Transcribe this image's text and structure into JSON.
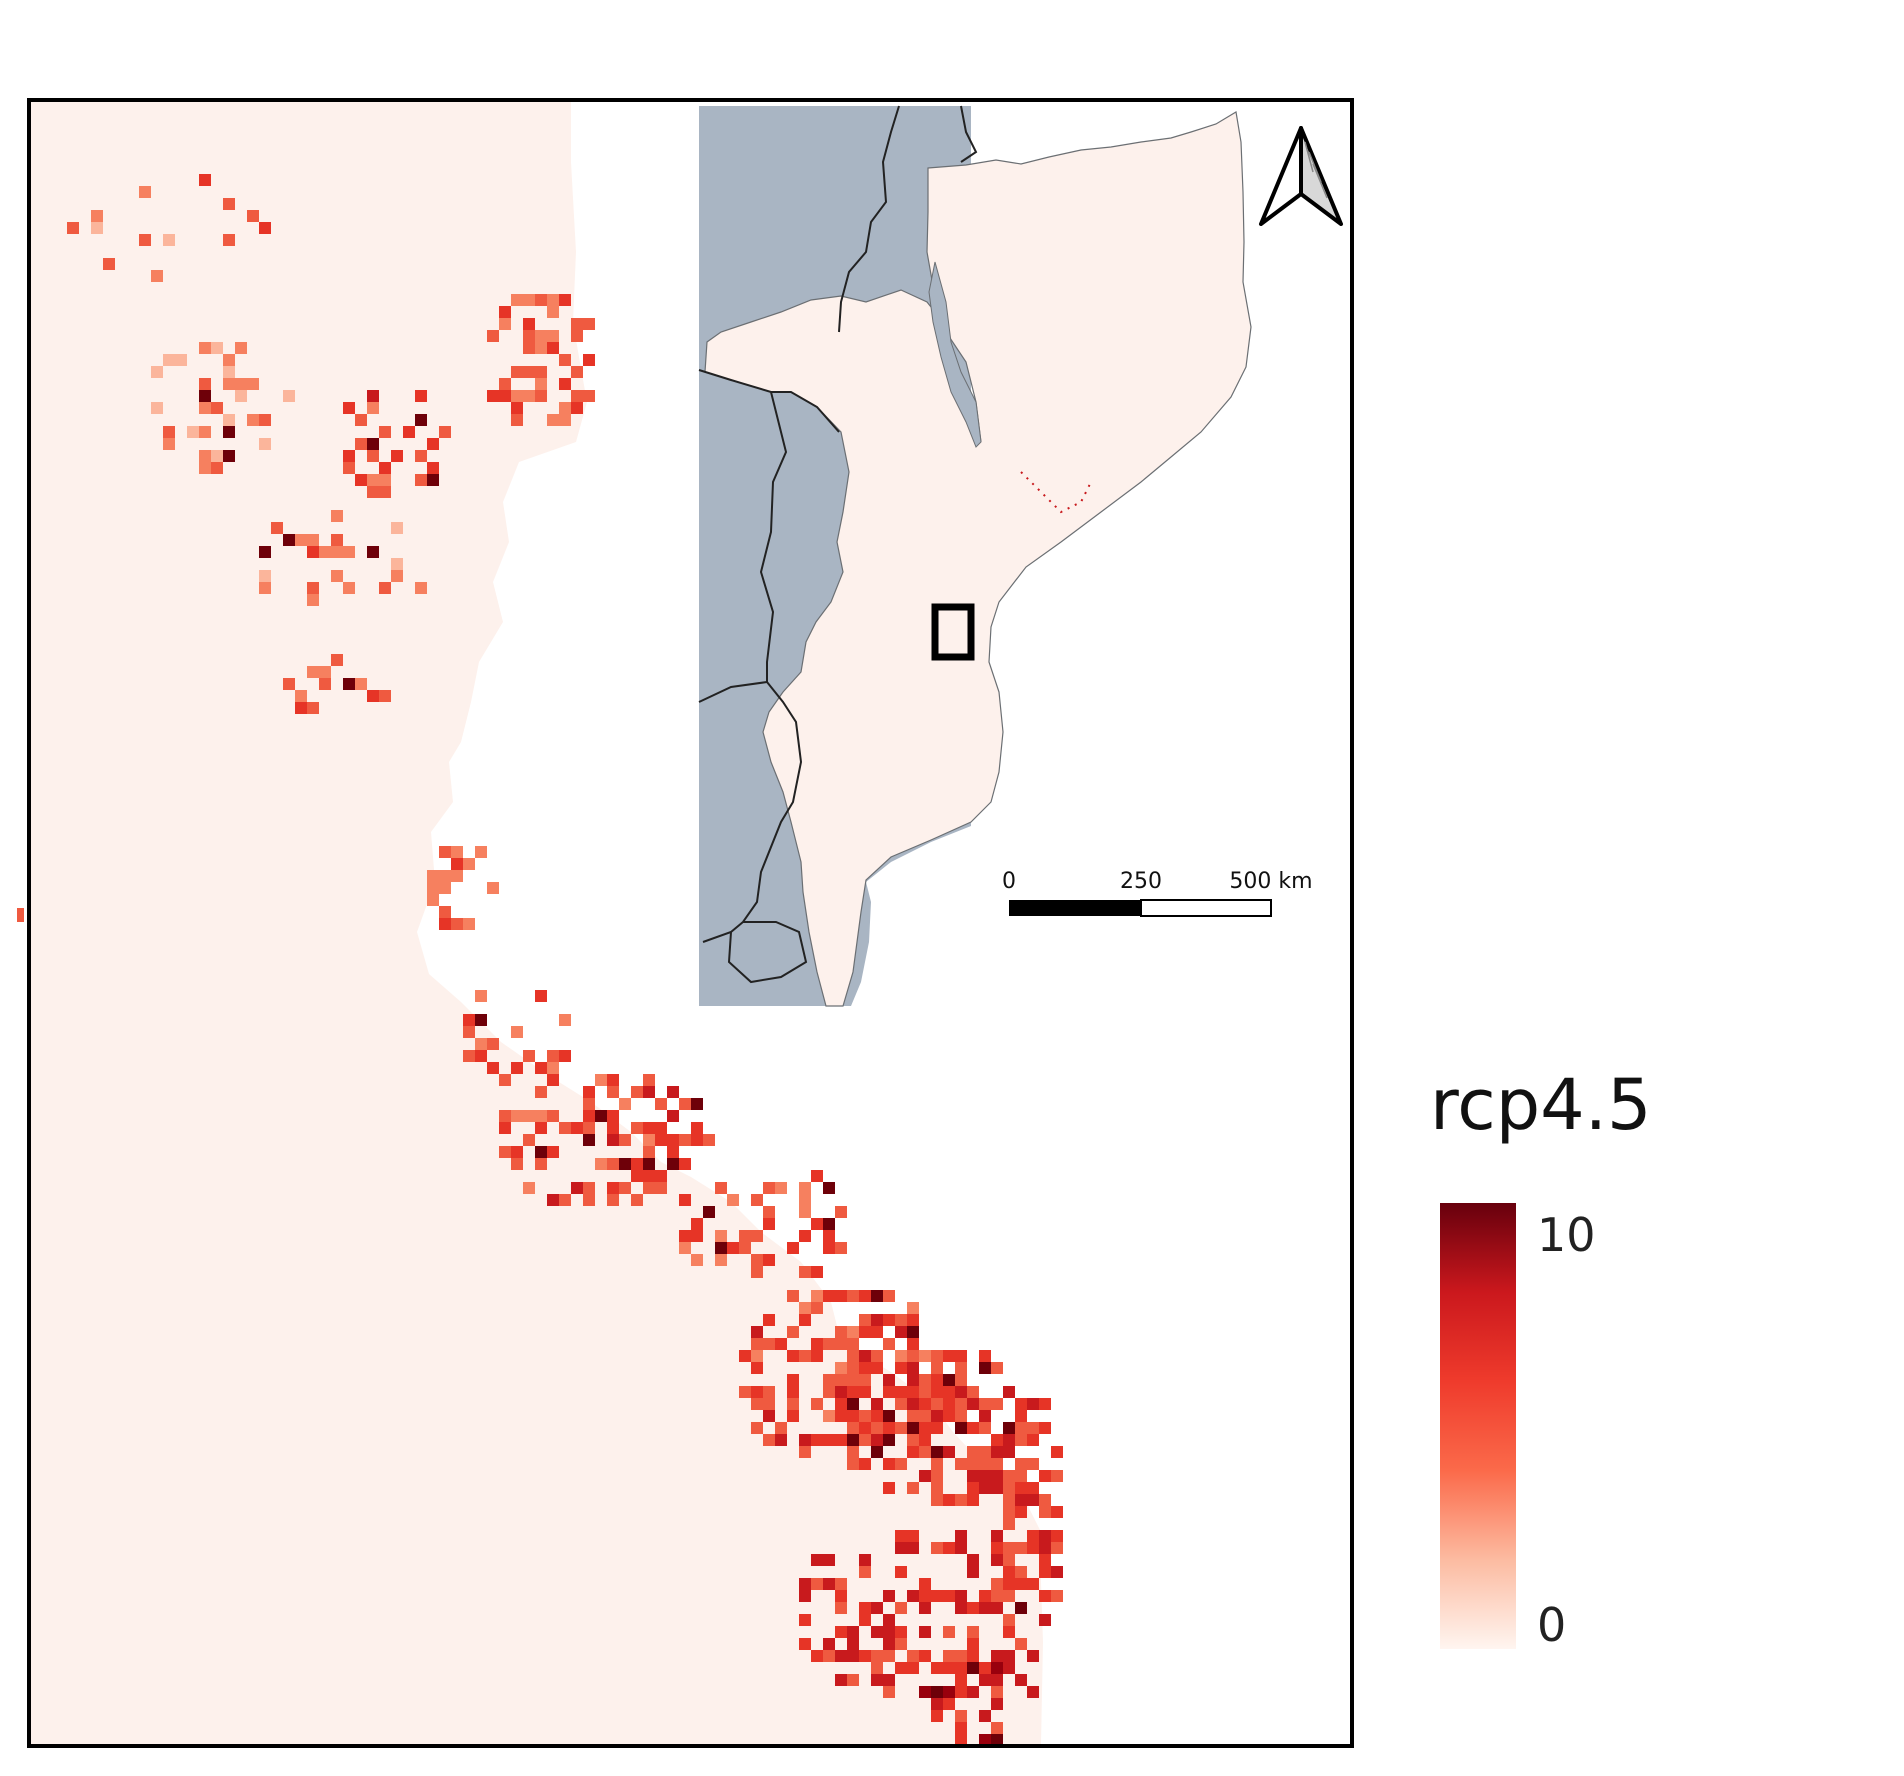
{
  "map": {
    "background_color": "#fdf1ec",
    "palette": [
      "#fdf1ec",
      "#fbb59b",
      "#f6805f",
      "#ef5a40",
      "#e63426",
      "#c81a1d",
      "#99000d",
      "#6e0009"
    ],
    "inset_land_color": "#fdf1ec",
    "inset_neighbor_color": "#a9b5c3",
    "north_arrow_icon": "north-arrow-icon"
  },
  "scalebar": {
    "labels": [
      "0",
      "250",
      "500 km"
    ]
  },
  "legend": {
    "title": "rcp4.5",
    "max_label": "10",
    "min_label": "0",
    "value_range": [
      0,
      10
    ],
    "gradient": [
      "#fff5f0",
      "#fcbba1",
      "#fb6a4a",
      "#ef3b2c",
      "#cb181d",
      "#67000d"
    ]
  }
}
